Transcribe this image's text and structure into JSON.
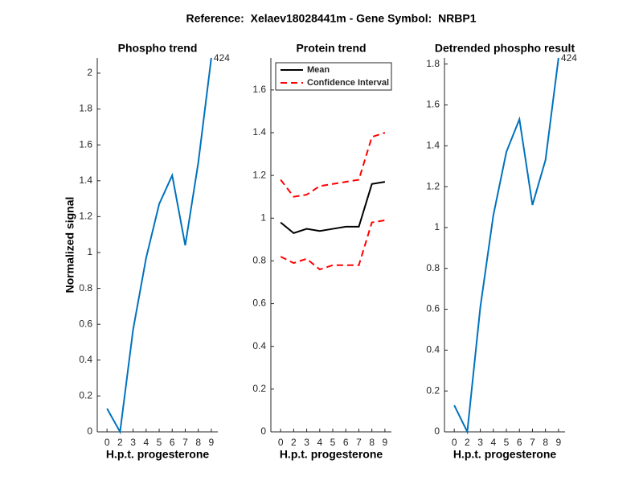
{
  "title": "Reference:  Xelaev18028441m - Gene Symbol:  NRBP1",
  "chart_data": [
    {
      "type": "line",
      "title": "Phospho trend",
      "xlabel": "H.p.t. progesterone",
      "ylabel": "Normalized signal",
      "x": [
        1,
        2,
        3,
        4,
        5,
        6,
        7,
        8,
        9
      ],
      "xlim": [
        0.25,
        9.5
      ],
      "xticks": [
        {
          "value": 1,
          "label": "0"
        },
        {
          "value": 2,
          "label": "2"
        },
        {
          "value": 3,
          "label": "3"
        },
        {
          "value": 4,
          "label": "4"
        },
        {
          "value": 5,
          "label": "5"
        },
        {
          "value": 6,
          "label": "6"
        },
        {
          "value": 7,
          "label": "7"
        },
        {
          "value": 8,
          "label": "8"
        },
        {
          "value": 9,
          "label": "9"
        }
      ],
      "ylim": [
        0,
        2.085
      ],
      "yticks": [
        0,
        0.2,
        0.4,
        0.6,
        0.8,
        1,
        1.2,
        1.4,
        1.6,
        1.8,
        2
      ],
      "series": [
        {
          "color": "#0072bd",
          "dash": false,
          "values": [
            0.13,
            0,
            0.57,
            0.97,
            1.27,
            1.43,
            1.04,
            1.5,
            2.085
          ]
        }
      ],
      "annotations": [
        {
          "text": "424",
          "x": 9,
          "y": 2.085
        }
      ]
    },
    {
      "type": "line",
      "title": "Protein trend",
      "xlabel": "H.p.t. progesterone",
      "x": [
        1,
        2,
        3,
        4,
        5,
        6,
        7,
        8,
        9
      ],
      "xlim": [
        0.25,
        9.5
      ],
      "xticks": [
        {
          "value": 1,
          "label": "0"
        },
        {
          "value": 2,
          "label": "2"
        },
        {
          "value": 3,
          "label": "3"
        },
        {
          "value": 4,
          "label": "4"
        },
        {
          "value": 5,
          "label": "5"
        },
        {
          "value": 6,
          "label": "6"
        },
        {
          "value": 7,
          "label": "7"
        },
        {
          "value": 8,
          "label": "8"
        },
        {
          "value": 9,
          "label": "9"
        }
      ],
      "ylim": [
        0,
        1.75
      ],
      "yticks": [
        0,
        0.2,
        0.4,
        0.6,
        0.8,
        1,
        1.2,
        1.4,
        1.6
      ],
      "legend": "upper left",
      "series": [
        {
          "name": "Mean",
          "color": "#000000",
          "dash": false,
          "values": [
            0.98,
            0.93,
            0.95,
            0.94,
            0.95,
            0.96,
            0.96,
            1.16,
            1.17
          ]
        },
        {
          "name": "Confidence Interval",
          "color": "#ff0000",
          "dash": true,
          "values": [
            1.18,
            1.1,
            1.11,
            1.15,
            1.16,
            1.17,
            1.18,
            1.38,
            1.4
          ]
        },
        {
          "color": "#ff0000",
          "dash": true,
          "values": [
            0.82,
            0.79,
            0.81,
            0.76,
            0.78,
            0.78,
            0.78,
            0.98,
            0.99
          ]
        }
      ]
    },
    {
      "type": "line",
      "title": "Detrended phospho result",
      "xlabel": "H.p.t. progesterone",
      "x": [
        1,
        2,
        3,
        4,
        5,
        6,
        7,
        8,
        9
      ],
      "xlim": [
        0.25,
        9.5
      ],
      "xticks": [
        {
          "value": 1,
          "label": "0"
        },
        {
          "value": 2,
          "label": "2"
        },
        {
          "value": 3,
          "label": "3"
        },
        {
          "value": 4,
          "label": "4"
        },
        {
          "value": 5,
          "label": "5"
        },
        {
          "value": 6,
          "label": "6"
        },
        {
          "value": 7,
          "label": "7"
        },
        {
          "value": 8,
          "label": "8"
        },
        {
          "value": 9,
          "label": "9"
        }
      ],
      "ylim": [
        0,
        1.83
      ],
      "yticks": [
        0,
        0.2,
        0.4,
        0.6,
        0.8,
        1,
        1.2,
        1.4,
        1.6,
        1.8
      ],
      "series": [
        {
          "color": "#0072bd",
          "dash": false,
          "values": [
            0.13,
            0,
            0.61,
            1.06,
            1.37,
            1.53,
            1.11,
            1.33,
            1.83
          ]
        }
      ],
      "annotations": [
        {
          "text": "424",
          "x": 9,
          "y": 1.83
        }
      ]
    }
  ]
}
